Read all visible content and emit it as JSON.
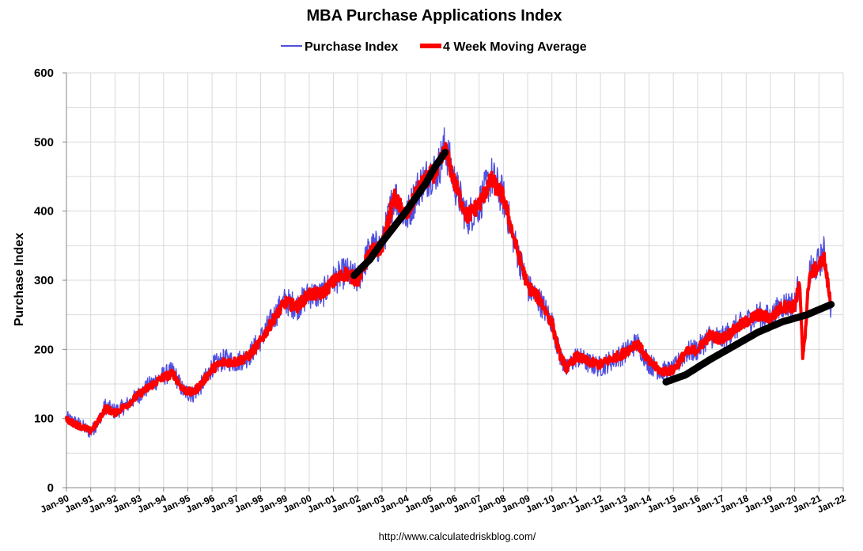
{
  "chart_data": {
    "type": "line",
    "title": "MBA Purchase Applications Index",
    "ylabel": "Purchase Index",
    "xlabel": "",
    "source": "http://www.calculatedriskblog.com/",
    "ylim": [
      0,
      600
    ],
    "yticks": [
      0,
      100,
      200,
      300,
      400,
      500,
      600
    ],
    "xlim": [
      1990,
      2022
    ],
    "x_tick_labels": [
      "Jan-90",
      "Jan-91",
      "Jan-92",
      "Jan-93",
      "Jan-94",
      "Jan-95",
      "Jan-96",
      "Jan-97",
      "Jan-98",
      "Jan-99",
      "Jan-00",
      "Jan-01",
      "Jan-02",
      "Jan-03",
      "Jan-04",
      "Jan-05",
      "Jan-06",
      "Jan-07",
      "Jan-08",
      "Jan-09",
      "Jan-10",
      "Jan-11",
      "Jan-12",
      "Jan-13",
      "Jan-14",
      "Jan-15",
      "Jan-16",
      "Jan-17",
      "Jan-18",
      "Jan-19",
      "Jan-20",
      "Jan-21",
      "Jan-22"
    ],
    "grid": true,
    "legend_position": "top-center",
    "series": [
      {
        "name": "Purchase Index",
        "color": "#4f4fe0",
        "style": "thin-noisy",
        "points": [
          [
            1990.0,
            100
          ],
          [
            1990.5,
            92
          ],
          [
            1991.0,
            80
          ],
          [
            1991.3,
            95
          ],
          [
            1991.6,
            118
          ],
          [
            1992.0,
            110
          ],
          [
            1992.5,
            120
          ],
          [
            1993.0,
            135
          ],
          [
            1993.5,
            150
          ],
          [
            1994.0,
            162
          ],
          [
            1994.4,
            168
          ],
          [
            1994.8,
            140
          ],
          [
            1995.2,
            135
          ],
          [
            1995.6,
            150
          ],
          [
            1996.0,
            175
          ],
          [
            1996.5,
            185
          ],
          [
            1997.0,
            182
          ],
          [
            1997.5,
            190
          ],
          [
            1998.0,
            215
          ],
          [
            1998.5,
            245
          ],
          [
            1999.0,
            270
          ],
          [
            1999.5,
            262
          ],
          [
            2000.0,
            280
          ],
          [
            2000.5,
            278
          ],
          [
            2001.0,
            300
          ],
          [
            2001.5,
            312
          ],
          [
            2002.0,
            300
          ],
          [
            2002.5,
            345
          ],
          [
            2003.0,
            350
          ],
          [
            2003.5,
            425
          ],
          [
            2004.0,
            390
          ],
          [
            2004.5,
            435
          ],
          [
            2005.0,
            455
          ],
          [
            2005.3,
            460
          ],
          [
            2005.6,
            495
          ],
          [
            2006.0,
            440
          ],
          [
            2006.5,
            390
          ],
          [
            2007.0,
            410
          ],
          [
            2007.5,
            450
          ],
          [
            2008.0,
            420
          ],
          [
            2008.5,
            350
          ],
          [
            2009.0,
            290
          ],
          [
            2009.5,
            270
          ],
          [
            2010.0,
            240
          ],
          [
            2010.3,
            195
          ],
          [
            2010.6,
            170
          ],
          [
            2011.0,
            190
          ],
          [
            2011.5,
            180
          ],
          [
            2012.0,
            175
          ],
          [
            2012.5,
            185
          ],
          [
            2013.0,
            195
          ],
          [
            2013.5,
            210
          ],
          [
            2014.0,
            180
          ],
          [
            2014.5,
            168
          ],
          [
            2015.0,
            170
          ],
          [
            2015.5,
            195
          ],
          [
            2016.0,
            200
          ],
          [
            2016.5,
            220
          ],
          [
            2017.0,
            215
          ],
          [
            2017.5,
            230
          ],
          [
            2018.0,
            240
          ],
          [
            2018.5,
            250
          ],
          [
            2019.0,
            245
          ],
          [
            2019.5,
            265
          ],
          [
            2020.0,
            265
          ],
          [
            2020.2,
            300
          ],
          [
            2020.33,
            185
          ],
          [
            2020.45,
            230
          ],
          [
            2020.6,
            310
          ],
          [
            2021.0,
            325
          ],
          [
            2021.2,
            340
          ],
          [
            2021.5,
            260
          ]
        ]
      },
      {
        "name": "4 Week Moving Average",
        "color": "#ff0000",
        "style": "thick",
        "points": [
          [
            1990.0,
            98
          ],
          [
            1990.5,
            90
          ],
          [
            1991.0,
            82
          ],
          [
            1991.3,
            95
          ],
          [
            1991.6,
            115
          ],
          [
            1992.0,
            108
          ],
          [
            1992.5,
            120
          ],
          [
            1993.0,
            135
          ],
          [
            1993.5,
            148
          ],
          [
            1994.0,
            160
          ],
          [
            1994.4,
            165
          ],
          [
            1994.8,
            142
          ],
          [
            1995.2,
            137
          ],
          [
            1995.6,
            152
          ],
          [
            1996.0,
            172
          ],
          [
            1996.5,
            182
          ],
          [
            1997.0,
            182
          ],
          [
            1997.5,
            190
          ],
          [
            1998.0,
            212
          ],
          [
            1998.5,
            242
          ],
          [
            1999.0,
            268
          ],
          [
            1999.5,
            262
          ],
          [
            2000.0,
            280
          ],
          [
            2000.5,
            280
          ],
          [
            2001.0,
            298
          ],
          [
            2001.5,
            310
          ],
          [
            2002.0,
            300
          ],
          [
            2002.5,
            340
          ],
          [
            2003.0,
            348
          ],
          [
            2003.5,
            420
          ],
          [
            2004.0,
            392
          ],
          [
            2004.5,
            432
          ],
          [
            2005.0,
            452
          ],
          [
            2005.3,
            458
          ],
          [
            2005.6,
            490
          ],
          [
            2006.0,
            440
          ],
          [
            2006.5,
            392
          ],
          [
            2007.0,
            410
          ],
          [
            2007.5,
            445
          ],
          [
            2008.0,
            420
          ],
          [
            2008.5,
            352
          ],
          [
            2009.0,
            292
          ],
          [
            2009.5,
            272
          ],
          [
            2010.0,
            238
          ],
          [
            2010.3,
            195
          ],
          [
            2010.6,
            172
          ],
          [
            2011.0,
            190
          ],
          [
            2011.5,
            182
          ],
          [
            2012.0,
            178
          ],
          [
            2012.5,
            187
          ],
          [
            2013.0,
            195
          ],
          [
            2013.5,
            210
          ],
          [
            2014.0,
            182
          ],
          [
            2014.5,
            168
          ],
          [
            2015.0,
            170
          ],
          [
            2015.5,
            195
          ],
          [
            2016.0,
            200
          ],
          [
            2016.5,
            220
          ],
          [
            2017.0,
            215
          ],
          [
            2017.5,
            228
          ],
          [
            2018.0,
            240
          ],
          [
            2018.5,
            250
          ],
          [
            2019.0,
            245
          ],
          [
            2019.5,
            262
          ],
          [
            2020.0,
            262
          ],
          [
            2020.2,
            295
          ],
          [
            2020.33,
            190
          ],
          [
            2020.45,
            230
          ],
          [
            2020.6,
            308
          ],
          [
            2021.0,
            320
          ],
          [
            2021.2,
            335
          ],
          [
            2021.5,
            262
          ]
        ]
      },
      {
        "name": "",
        "color": "#000000",
        "style": "trend",
        "points": [
          [
            2001.85,
            307
          ],
          [
            2002.5,
            330
          ],
          [
            2003.0,
            355
          ],
          [
            2004.0,
            400
          ],
          [
            2004.8,
            440
          ],
          [
            2005.2,
            465
          ],
          [
            2005.6,
            485
          ]
        ]
      },
      {
        "name": "",
        "color": "#000000",
        "style": "trend",
        "points": [
          [
            2014.7,
            153
          ],
          [
            2015.5,
            163
          ],
          [
            2016.5,
            185
          ],
          [
            2017.5,
            205
          ],
          [
            2018.5,
            225
          ],
          [
            2019.5,
            240
          ],
          [
            2020.5,
            250
          ],
          [
            2021.5,
            265
          ]
        ]
      }
    ]
  }
}
